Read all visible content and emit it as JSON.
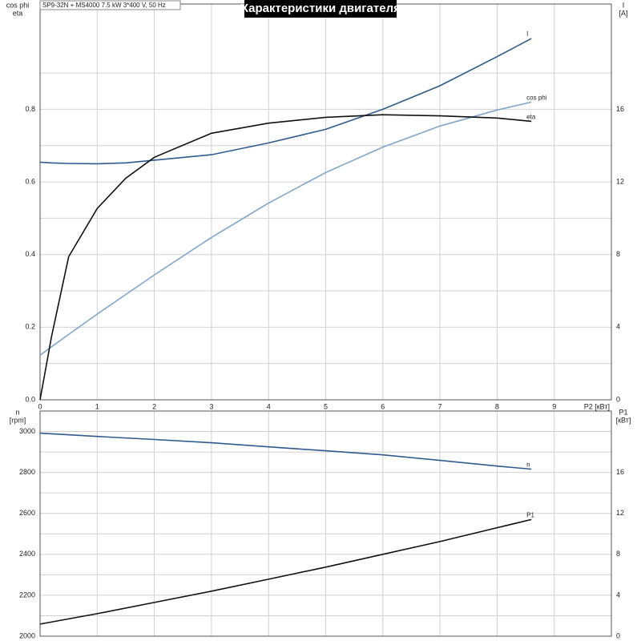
{
  "chart_data": [
    {
      "type": "line",
      "title": "Характеристики двигателя",
      "subtitle": "SP9-32N + MS4000   7.5 kW   3*400 V, 50 Hz",
      "xlabel": "P2 [кВт]",
      "ylabel_lines": [
        "cos phi",
        "eta"
      ],
      "y2label_lines": [
        "I",
        "[A]"
      ],
      "x": [
        0,
        0.2,
        0.5,
        1,
        1.5,
        2,
        3,
        4,
        5,
        6,
        7,
        8,
        8.6
      ],
      "xlim": [
        0,
        10
      ],
      "xticks": [
        0,
        1,
        2,
        3,
        4,
        5,
        6,
        7,
        8,
        9
      ],
      "ylim": [
        0,
        1.09
      ],
      "yticks": [
        {
          "value": 0,
          "label": "0.0"
        },
        0.2,
        0.4,
        0.6,
        0.8
      ],
      "y2lim": [
        0,
        21.8
      ],
      "y2ticks": [
        0,
        4,
        8,
        12,
        16
      ],
      "grid": true,
      "series": [
        {
          "name": "I",
          "color": "#2f5b8c",
          "axis": "y2",
          "values": [
            13.09,
            13.05,
            13.02,
            13.0,
            13.05,
            13.2,
            13.5,
            14.15,
            14.9,
            16.0,
            17.3,
            18.9,
            19.9
          ]
        },
        {
          "name": "cos phi",
          "color": "#7fa6c9",
          "values": [
            0.123,
            0.146,
            0.18,
            0.236,
            0.29,
            0.344,
            0.447,
            0.542,
            0.626,
            0.696,
            0.754,
            0.798,
            0.82
          ]
        },
        {
          "name": "eta",
          "color": "#111111",
          "values": [
            0,
            0.174,
            0.394,
            0.527,
            0.61,
            0.668,
            0.734,
            0.762,
            0.778,
            0.785,
            0.782,
            0.776,
            0.767
          ]
        }
      ]
    },
    {
      "type": "line",
      "ylabel_lines": [
        "n",
        "[rpm]"
      ],
      "y2label_lines": [
        "P1",
        "[кВт]"
      ],
      "x": [
        0,
        1,
        2,
        3,
        4,
        5,
        6,
        7,
        8,
        8.6
      ],
      "xlim": [
        0,
        10
      ],
      "xticks": [
        0,
        1,
        2,
        3,
        4,
        5,
        6,
        7,
        8,
        9
      ],
      "ylim": [
        2000,
        3100
      ],
      "yticks": [
        2000,
        2200,
        2400,
        2600,
        2800,
        3000
      ],
      "y2lim": [
        0,
        22
      ],
      "y2ticks": [
        0,
        4,
        8,
        12,
        16
      ],
      "grid": true,
      "series": [
        {
          "name": "n",
          "color": "#2f5b8c",
          "values": [
            2992,
            2976,
            2961,
            2945,
            2925,
            2906,
            2886,
            2859,
            2831,
            2816
          ]
        },
        {
          "name": "P1",
          "color": "#111111",
          "axis": "y2",
          "values": [
            1.18,
            2.2,
            3.3,
            4.4,
            5.57,
            6.75,
            8.0,
            9.25,
            10.6,
            11.4
          ]
        }
      ]
    }
  ]
}
